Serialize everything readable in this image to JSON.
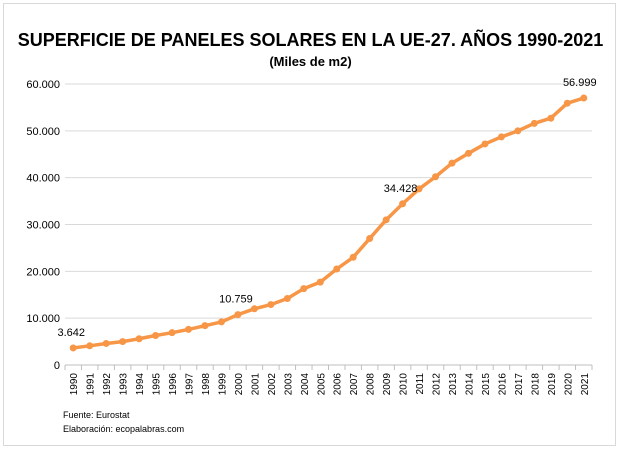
{
  "chart_data": {
    "type": "line",
    "title": "SUPERFICIE DE PANELES SOLARES EN LA UE-27. AÑOS 1990-2021",
    "subtitle": "(Miles de m2)",
    "categories": [
      "1990",
      "1991",
      "1992",
      "1993",
      "1994",
      "1995",
      "1996",
      "1997",
      "1998",
      "1999",
      "2000",
      "2001",
      "2002",
      "2003",
      "2004",
      "2005",
      "2006",
      "2007",
      "2008",
      "2009",
      "2010",
      "2011",
      "2012",
      "2013",
      "2014",
      "2015",
      "2016",
      "2017",
      "2018",
      "2019",
      "2020",
      "2021"
    ],
    "values": [
      3642,
      4100,
      4600,
      5000,
      5600,
      6300,
      6900,
      7600,
      8400,
      9200,
      10759,
      12000,
      12900,
      14200,
      16300,
      17700,
      20500,
      23000,
      27000,
      31000,
      34428,
      37600,
      40200,
      43100,
      45200,
      47200,
      48700,
      50000,
      51600,
      52700,
      55900,
      56999
    ],
    "data_labels": {
      "1990": "3.642",
      "2000": "10.759",
      "2010": "34.428",
      "2021": "56.999"
    },
    "ylim": [
      0,
      60000
    ],
    "yticks": [
      "0",
      "10.000",
      "20.000",
      "30.000",
      "40.000",
      "50.000",
      "60.000"
    ],
    "grid": true,
    "color": "#f79646"
  },
  "footer": {
    "source": "Fuente: Eurostat",
    "credit": "Elaboración: ecopalabras.com"
  }
}
